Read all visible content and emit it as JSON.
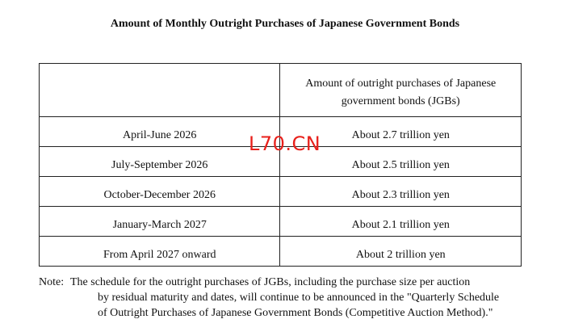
{
  "title": "Amount of Monthly Outright Purchases of Japanese Government Bonds",
  "table": {
    "header": {
      "period": "",
      "amount_line1": "Amount of outright purchases of Japanese",
      "amount_line2": "government bonds (JGBs)"
    },
    "rows": [
      {
        "period": "April-June 2026",
        "amount": "About 2.7 trillion yen"
      },
      {
        "period": "July-September 2026",
        "amount": "About 2.5 trillion yen"
      },
      {
        "period": "October-December 2026",
        "amount": "About 2.3 trillion yen"
      },
      {
        "period": "January-March 2027",
        "amount": "About 2.1 trillion yen"
      },
      {
        "period": "From April 2027 onward",
        "amount": "About 2 trillion yen"
      }
    ]
  },
  "watermark": "L70.CN",
  "note": {
    "label": "Note:",
    "line1": "The schedule for the outright purchases of JGBs, including the purchase size per auction",
    "line2": "by residual maturity and dates, will continue to be announced in the \"Quarterly Schedule",
    "line3": "of Outright Purchases of Japanese Government Bonds (Competitive Auction Method).\""
  },
  "colors": {
    "watermark": "#e8201b",
    "text": "#111111",
    "border": "#222222"
  }
}
